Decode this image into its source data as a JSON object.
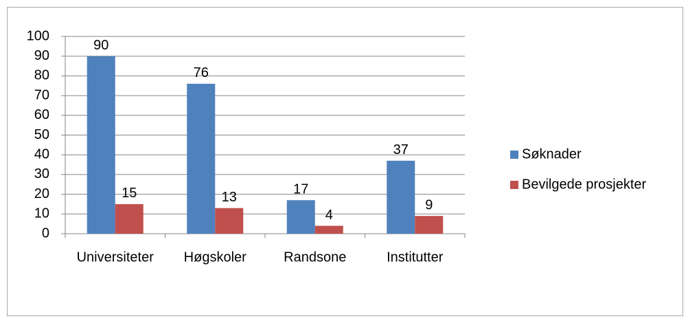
{
  "chart_data": {
    "type": "bar",
    "categories": [
      "Universiteter",
      "Høgskoler",
      "Randsone",
      "Institutter"
    ],
    "series": [
      {
        "name": "Søknader",
        "color": "#4f81bd",
        "values": [
          90,
          76,
          17,
          37
        ]
      },
      {
        "name": "Bevilgede prosjekter",
        "color": "#c0504d",
        "values": [
          15,
          13,
          4,
          9
        ]
      }
    ],
    "ylim": [
      0,
      100
    ],
    "yticks": [
      0,
      10,
      20,
      30,
      40,
      50,
      60,
      70,
      80,
      90,
      100
    ],
    "grid": true,
    "legend": "right"
  }
}
